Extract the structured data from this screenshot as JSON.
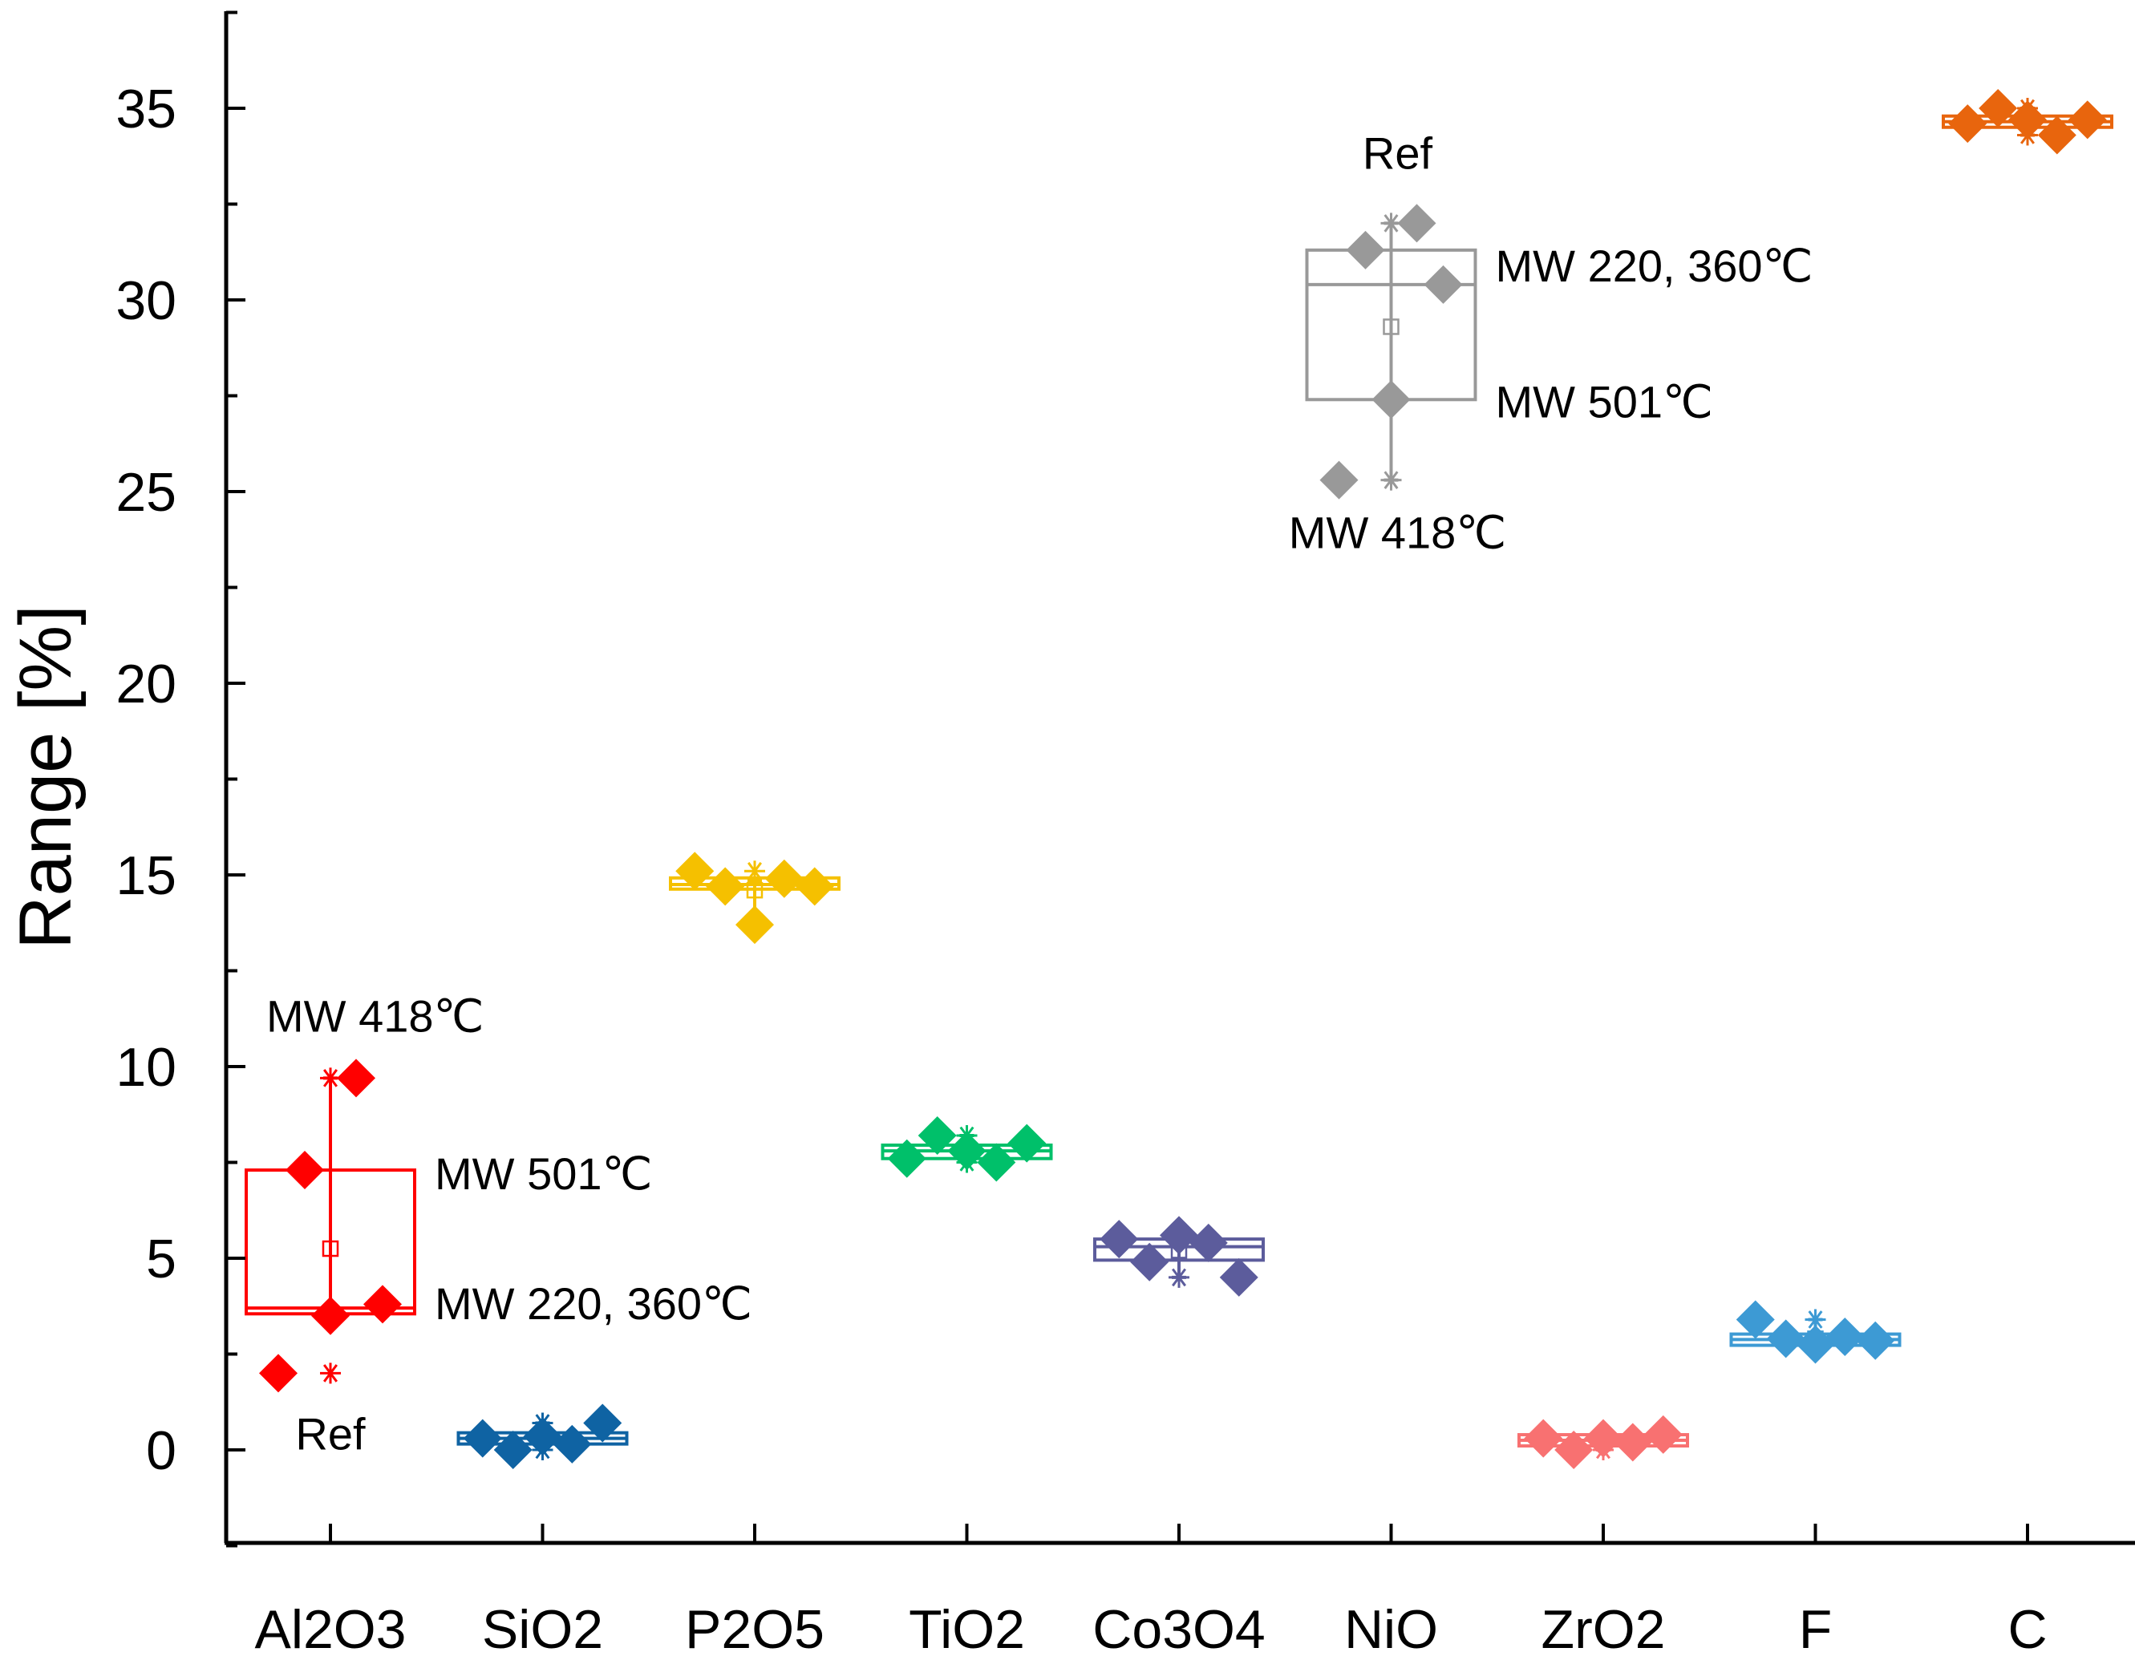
{
  "chart_data": {
    "type": "box",
    "title": "",
    "xlabel": "",
    "ylabel": "Range [%]",
    "ylim": [
      -2.5,
      37.5
    ],
    "yticks": [
      0,
      5,
      10,
      15,
      20,
      25,
      30,
      35
    ],
    "categories": [
      "Al2O3",
      "SiO2",
      "P2O5",
      "TiO2",
      "Co3O4",
      "NiO",
      "ZrO2",
      "F",
      "C"
    ],
    "series": [
      {
        "name": "Al2O3",
        "color": "#ff0000",
        "points": [
          2.0,
          3.5,
          3.8,
          7.3,
          9.7
        ],
        "box": {
          "q1": 3.55,
          "median": 3.7,
          "q3": 7.3,
          "mean": 5.25,
          "whisker_low": 3.55,
          "whisker_high": 9.7,
          "min": 2.0,
          "max": 9.7
        }
      },
      {
        "name": "SiO2",
        "color": "#0f63a3",
        "points": [
          0.0,
          0.15,
          0.3,
          0.35,
          0.7
        ],
        "box": {
          "q1": 0.25,
          "median": 0.3,
          "q3": 0.35,
          "mean": 0.3,
          "whisker_low": 0.25,
          "whisker_high": 0.7,
          "min": 0.0,
          "max": 0.7
        }
      },
      {
        "name": "P2O5",
        "color": "#f5c000",
        "points": [
          13.7,
          14.7,
          14.9,
          15.1,
          14.7
        ],
        "box": {
          "q1": 14.7,
          "median": 14.75,
          "q3": 14.85,
          "mean": 14.6,
          "whisker_low": 13.7,
          "whisker_high": 14.85,
          "min": 13.7,
          "max": 15.1
        }
      },
      {
        "name": "TiO2",
        "color": "#00c06a",
        "points": [
          7.5,
          7.6,
          7.8,
          8.0,
          8.2
        ],
        "box": {
          "q1": 7.6,
          "median": 7.8,
          "q3": 7.95,
          "mean": 7.8,
          "whisker_low": 7.6,
          "whisker_high": 8.2,
          "min": 7.5,
          "max": 8.2
        }
      },
      {
        "name": "Co3O4",
        "color": "#5c5c9c",
        "points": [
          4.5,
          4.9,
          5.4,
          5.5,
          5.6
        ],
        "box": {
          "q1": 4.95,
          "median": 5.3,
          "q3": 5.5,
          "mean": 5.2,
          "whisker_low": 4.5,
          "whisker_high": 5.6,
          "min": 4.5,
          "max": 5.6
        }
      },
      {
        "name": "NiO",
        "color": "#999999",
        "points": [
          25.3,
          27.4,
          30.4,
          31.3,
          32.0
        ],
        "box": {
          "q1": 27.4,
          "median": 30.4,
          "q3": 31.3,
          "mean": 29.3,
          "whisker_low": 25.3,
          "whisker_high": 32.0,
          "min": 25.3,
          "max": 32.0
        }
      },
      {
        "name": "ZrO2",
        "color": "#f87171",
        "points": [
          0.0,
          0.2,
          0.3,
          0.3,
          0.4
        ],
        "box": {
          "q1": 0.15,
          "median": 0.25,
          "q3": 0.35,
          "mean": 0.25,
          "whisker_low": 0.0,
          "whisker_high": 0.4,
          "min": 0.0,
          "max": 0.4
        }
      },
      {
        "name": "F",
        "color": "#3d9ad4",
        "points": [
          2.75,
          2.85,
          2.9,
          2.95,
          3.4
        ],
        "box": {
          "q1": 2.8,
          "median": 2.88,
          "q3": 2.95,
          "mean": 2.9,
          "whisker_low": 2.75,
          "whisker_high": 3.4,
          "min": 2.75,
          "max": 3.4
        }
      },
      {
        "name": "C",
        "color": "#e8650d",
        "points": [
          34.3,
          34.6,
          34.7,
          34.7,
          35.0
        ],
        "box": {
          "q1": 34.6,
          "median": 34.65,
          "q3": 34.7,
          "mean": 34.65,
          "whisker_low": 34.3,
          "whisker_high": 35.0,
          "min": 34.3,
          "max": 35.0
        }
      }
    ],
    "annotations": [
      {
        "category": "Al2O3",
        "text": "MW 418℃",
        "y": 9.7
      },
      {
        "category": "Al2O3",
        "text": "MW 501℃",
        "y": 7.3
      },
      {
        "category": "Al2O3",
        "text": "MW 220, 360℃",
        "y": 3.7
      },
      {
        "category": "Al2O3",
        "text": "Ref",
        "y": 2.0
      },
      {
        "category": "NiO",
        "text": "Ref",
        "y": 32.0
      },
      {
        "category": "NiO",
        "text": "MW 220, 360℃",
        "y": 30.9
      },
      {
        "category": "NiO",
        "text": "MW 501℃",
        "y": 27.4
      },
      {
        "category": "NiO",
        "text": "MW 418℃",
        "y": 25.3
      }
    ]
  }
}
